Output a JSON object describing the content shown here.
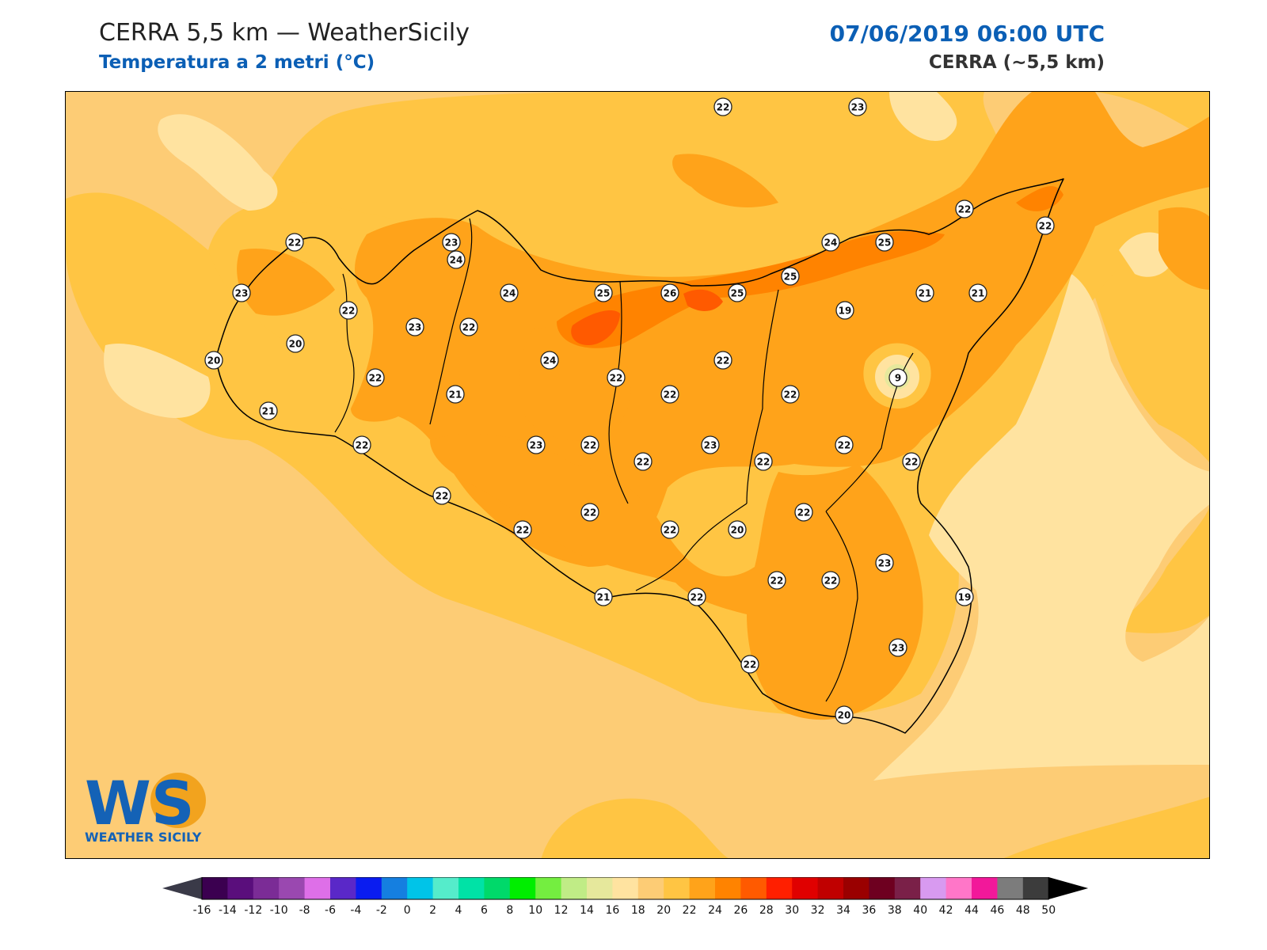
{
  "header": {
    "title_left": "CERRA 5,5 km — WeatherSicily",
    "subtitle_left": "Temperatura a 2 metri (°C)",
    "title_right": "07/06/2019 06:00 UTC",
    "subtitle_right": "CERRA (~5,5 km)"
  },
  "logo": {
    "text_main": "WS",
    "text_sub": "WEATHER SICILY"
  },
  "colors": {
    "sea_base": "#fdcc75",
    "band_20_22": "#ffc543",
    "band_22_24": "#ffa31a",
    "band_24_26": "#ff8300",
    "band_26_28": "#ff5a00",
    "band_16_18": "#ffe3a0",
    "accent_blue": "#0b5fb5"
  },
  "colorbar": {
    "labels": [
      "-16",
      "-14",
      "-12",
      "-10",
      "-8",
      "-6",
      "-4",
      "-2",
      "0",
      "2",
      "4",
      "6",
      "8",
      "10",
      "12",
      "14",
      "16",
      "18",
      "20",
      "22",
      "24",
      "26",
      "28",
      "30",
      "32",
      "34",
      "36",
      "38",
      "40",
      "42",
      "44",
      "46",
      "48",
      "50"
    ],
    "colors": [
      "#3b0050",
      "#5a0e7c",
      "#7b2c96",
      "#9a48b0",
      "#de6fe8",
      "#5a28c8",
      "#0a1cf0",
      "#157fe0",
      "#00c4e8",
      "#55eccb",
      "#00e2a6",
      "#00d96a",
      "#00ee00",
      "#74ee40",
      "#c0ec86",
      "#e6e89c",
      "#ffe3a0",
      "#fdcc75",
      "#ffc543",
      "#ffa31a",
      "#ff8300",
      "#ff5a00",
      "#ff1f00",
      "#e00000",
      "#c00000",
      "#9a0000",
      "#6e0020",
      "#7a2048",
      "#d89af0",
      "#ff76c8",
      "#f2189a",
      "#7c7c7c",
      "#3c3c3c"
    ],
    "under_color": "#3a3a48",
    "over_color": "#000000"
  },
  "stations": [
    {
      "v": "22"
    },
    {
      "v": "23"
    },
    {
      "v": "22"
    },
    {
      "v": "23"
    },
    {
      "v": "24"
    },
    {
      "v": "23"
    },
    {
      "v": "22"
    },
    {
      "v": "24"
    },
    {
      "v": "25"
    },
    {
      "v": "26"
    },
    {
      "v": "25"
    },
    {
      "v": "25"
    },
    {
      "v": "24"
    },
    {
      "v": "25"
    },
    {
      "v": "22"
    },
    {
      "v": "22"
    },
    {
      "v": "19"
    },
    {
      "v": "21"
    },
    {
      "v": "21"
    },
    {
      "v": "20"
    },
    {
      "v": "23"
    },
    {
      "v": "22"
    },
    {
      "v": "20"
    },
    {
      "v": "24"
    },
    {
      "v": "22"
    },
    {
      "v": "22"
    },
    {
      "v": "21"
    },
    {
      "v": "22"
    },
    {
      "v": "22"
    },
    {
      "v": "9"
    },
    {
      "v": "21"
    },
    {
      "v": "22"
    },
    {
      "v": "22"
    },
    {
      "v": "23"
    },
    {
      "v": "22"
    },
    {
      "v": "22"
    },
    {
      "v": "23"
    },
    {
      "v": "22"
    },
    {
      "v": "22"
    },
    {
      "v": "22"
    },
    {
      "v": "22"
    },
    {
      "v": "22"
    },
    {
      "v": "22"
    },
    {
      "v": "22"
    },
    {
      "v": "23"
    },
    {
      "v": "22"
    },
    {
      "v": "20"
    },
    {
      "v": "21"
    },
    {
      "v": "22"
    },
    {
      "v": "22"
    },
    {
      "v": "22"
    },
    {
      "v": "22"
    },
    {
      "v": "23"
    },
    {
      "v": "20"
    },
    {
      "v": "19"
    }
  ]
}
